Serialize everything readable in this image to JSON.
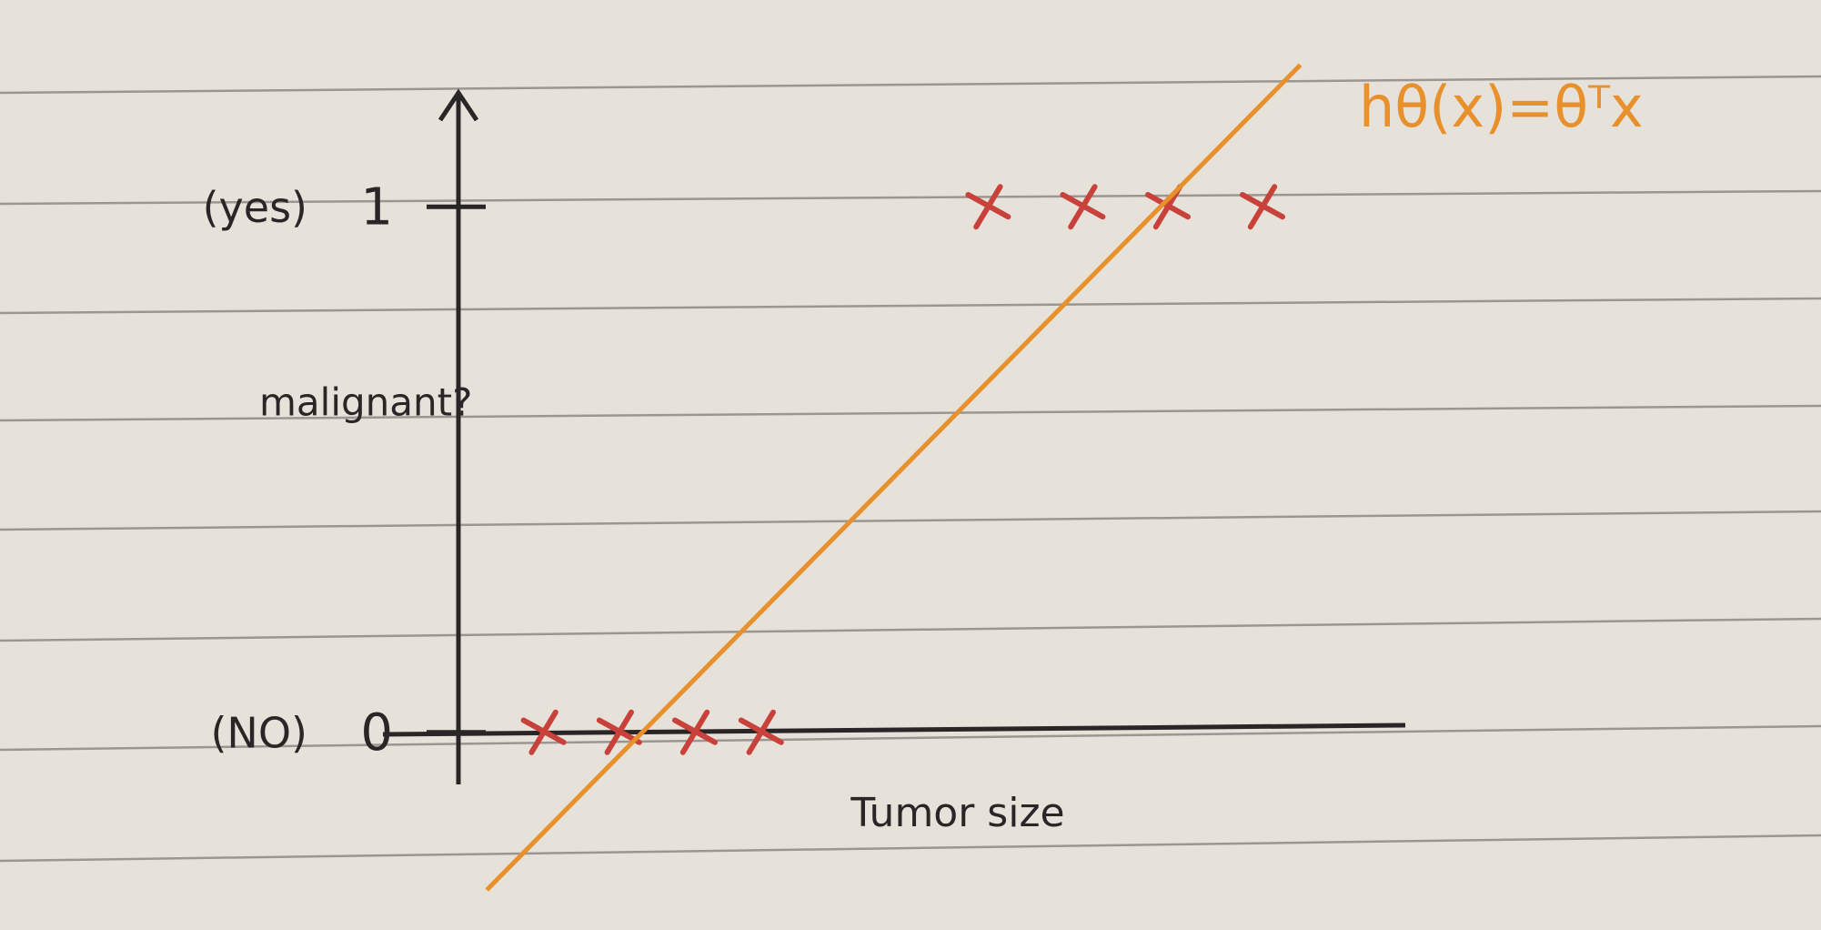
{
  "chart_data": {
    "type": "scatter",
    "x_label": "Tumor size",
    "y_label": "malignant?",
    "xlim": [
      0,
      10
    ],
    "ylim": [
      -0.3,
      1.3
    ],
    "yticks": [
      0,
      1
    ],
    "annotations": [
      {
        "text": "(NO)",
        "y": 0
      },
      {
        "text": "(yes)",
        "y": 1
      }
    ],
    "series": [
      {
        "type": "scatter",
        "color": "#c8413a",
        "x": [
          0.9,
          1.7,
          2.5,
          3.2,
          5.6,
          6.6,
          7.5,
          8.5
        ],
        "values": [
          0,
          0,
          0,
          0,
          1,
          1,
          1,
          1
        ]
      },
      {
        "type": "line",
        "name": "hθ(x)=θᵀx",
        "color": "#e8902c",
        "x": [
          0.3,
          8.9
        ],
        "values": [
          -0.3,
          1.27
        ]
      }
    ]
  }
}
